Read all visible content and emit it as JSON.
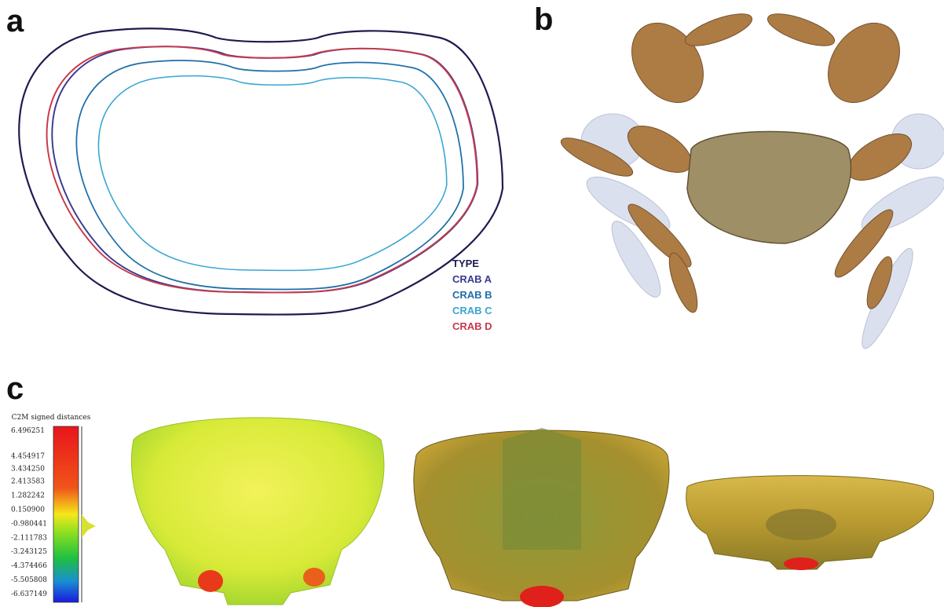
{
  "panels": {
    "a": {
      "label": "a",
      "legend": [
        {
          "name": "TYPE",
          "color": "#1e1b4f"
        },
        {
          "name": "CRAB A",
          "color": "#3a3990"
        },
        {
          "name": "CRAB B",
          "color": "#1f6fa8"
        },
        {
          "name": "CRAB C",
          "color": "#38a6d3"
        },
        {
          "name": "CRAB D",
          "color": "#c73a4c"
        }
      ]
    },
    "b": {
      "label": "b"
    },
    "c": {
      "label": "c",
      "colorbar": {
        "title": "C2M signed distances",
        "ticks": [
          "6.496251",
          "4.454917",
          "3.434250",
          "2.413583",
          "1.282242",
          "0.150900",
          "-0.980441",
          "-2.111783",
          "-3.243125",
          "-4.374466",
          "-5.505808",
          "-6.637149"
        ]
      }
    }
  }
}
